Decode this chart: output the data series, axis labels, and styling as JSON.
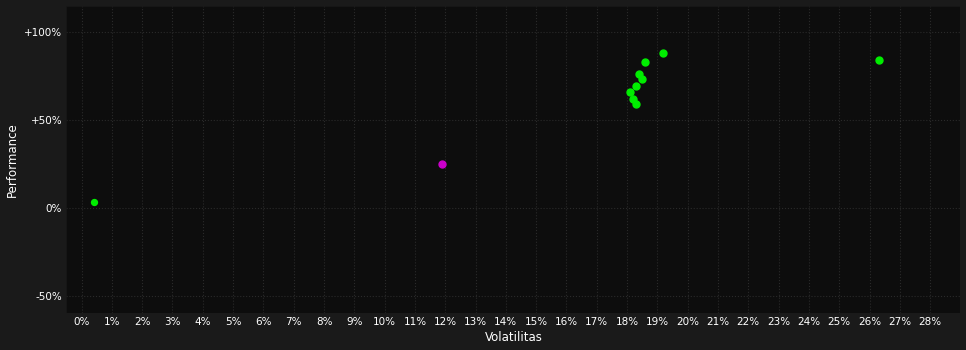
{
  "background_color": "#1a1a1a",
  "plot_bg_color": "#0d0d0d",
  "grid_color": "#2a2a2a",
  "text_color": "#ffffff",
  "xlabel": "Volatilitas",
  "ylabel": "Performance",
  "xlim": [
    -0.005,
    0.29
  ],
  "ylim": [
    -0.6,
    1.15
  ],
  "yticks": [
    -0.5,
    0.0,
    0.5,
    1.0
  ],
  "ytick_labels": [
    "-50%",
    "0%",
    "+50%",
    "+100%"
  ],
  "xticks": [
    0.0,
    0.01,
    0.02,
    0.03,
    0.04,
    0.05,
    0.06,
    0.07,
    0.08,
    0.09,
    0.1,
    0.11,
    0.12,
    0.13,
    0.14,
    0.15,
    0.16,
    0.17,
    0.18,
    0.19,
    0.2,
    0.21,
    0.22,
    0.23,
    0.24,
    0.25,
    0.26,
    0.27,
    0.28
  ],
  "green_points": [
    [
      0.186,
      0.83
    ],
    [
      0.184,
      0.76
    ],
    [
      0.185,
      0.73
    ],
    [
      0.183,
      0.69
    ],
    [
      0.181,
      0.66
    ],
    [
      0.182,
      0.62
    ],
    [
      0.183,
      0.59
    ],
    [
      0.192,
      0.88
    ],
    [
      0.263,
      0.84
    ]
  ],
  "green_color": "#00ee00",
  "magenta_points": [
    [
      0.119,
      0.25
    ]
  ],
  "magenta_color": "#cc00cc",
  "lone_green_point": [
    0.004,
    0.03
  ],
  "point_size": 25,
  "lone_point_size": 18,
  "tick_fontsize": 7.5,
  "label_fontsize": 8.5
}
